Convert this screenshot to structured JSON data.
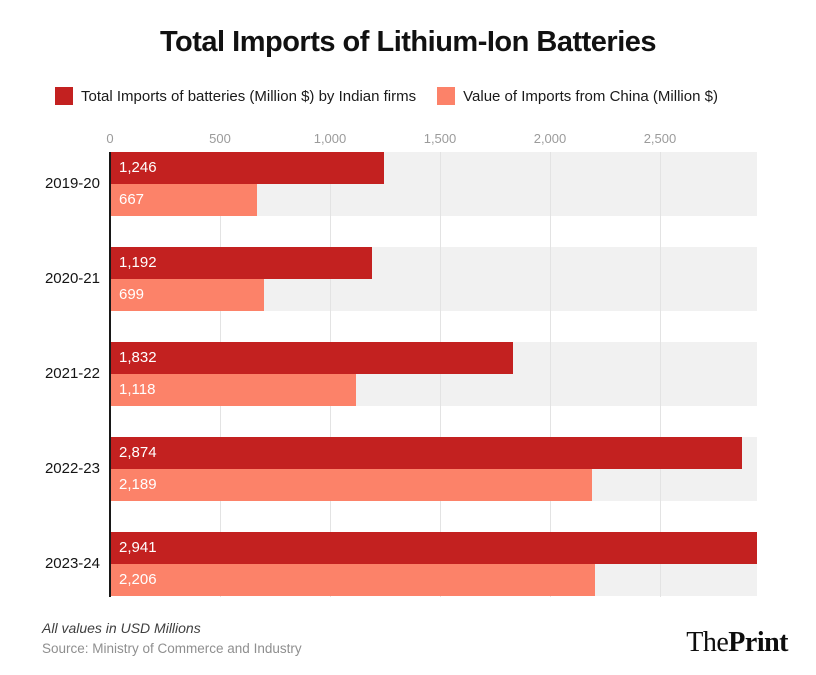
{
  "title": "Total Imports of Lithium-Ion Batteries",
  "legend": {
    "items": [
      {
        "id": "indian-firms",
        "label": "Total Imports of batteries (Million $) by Indian firms",
        "color": "#c32120"
      },
      {
        "id": "china",
        "label": "Value of Imports from China (Million $)",
        "color": "#fc8269"
      }
    ]
  },
  "chart_data": {
    "type": "bar",
    "orientation": "horizontal",
    "title": "Total Imports of Lithium-Ion Batteries",
    "categories": [
      "2019-20",
      "2020-21",
      "2021-22",
      "2022-23",
      "2023-24"
    ],
    "series": [
      {
        "name": "Total Imports of batteries (Million $) by Indian firms",
        "color": "#c32120",
        "values": [
          1246,
          1192,
          1832,
          2874,
          2941
        ],
        "labels": [
          "1,246",
          "1,192",
          "1,832",
          "2,874",
          "2,941"
        ]
      },
      {
        "name": "Value of Imports from China (Million $)",
        "color": "#fc8269",
        "values": [
          667,
          699,
          1118,
          2189,
          2206
        ],
        "labels": [
          "667",
          "699",
          "1,118",
          "2,189",
          "2,206"
        ]
      }
    ],
    "xlim": [
      0,
      2941
    ],
    "x_ticks": [
      {
        "value": 0,
        "label": "0"
      },
      {
        "value": 500,
        "label": "500"
      },
      {
        "value": 1000,
        "label": "1,000"
      },
      {
        "value": 1500,
        "label": "1,500"
      },
      {
        "value": 2000,
        "label": "2,000"
      },
      {
        "value": 2500,
        "label": "2,500"
      }
    ],
    "grid": true,
    "legend_position": "top",
    "track_color": "#f1f1f1",
    "gridline_color": "#e3e3e3",
    "value_label_color": "#ffffff"
  },
  "footer": {
    "note": "All values in USD Millions",
    "source": "Source: Ministry of Commerce and Industry",
    "logo": {
      "the": "The",
      "print": "Print"
    }
  }
}
